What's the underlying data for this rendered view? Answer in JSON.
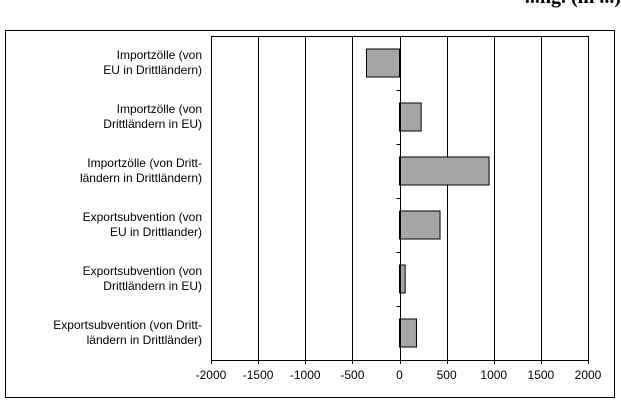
{
  "chart_data": {
    "type": "bar",
    "orientation": "horizontal",
    "title": "...ng. (in ...)",
    "categories": [
      [
        "Importzölle (von",
        "EU in Drittländern)"
      ],
      [
        "Importzölle (von",
        "Drittländern in EU)"
      ],
      [
        "Importzölle (von Dritt-",
        "ländern in Drittländern)"
      ],
      [
        "Exportsubvention (von",
        "EU in Drittlander)"
      ],
      [
        "Exportsubvention (von",
        "Drittländern in EU)"
      ],
      [
        "Exportsubvention  (von Dritt-",
        "ländern in Drittländer)"
      ]
    ],
    "values": [
      -350,
      230,
      950,
      430,
      60,
      180
    ],
    "xlim": [
      -2000,
      2000
    ],
    "xticks": [
      -2000,
      -1500,
      -1000,
      -500,
      0,
      500,
      1000,
      1500,
      2000
    ],
    "grid": "vertical",
    "colors": {
      "bar": "#a6a6a6",
      "bar_stroke": "#000000",
      "grid": "#000000",
      "frame": "#000000"
    }
  }
}
